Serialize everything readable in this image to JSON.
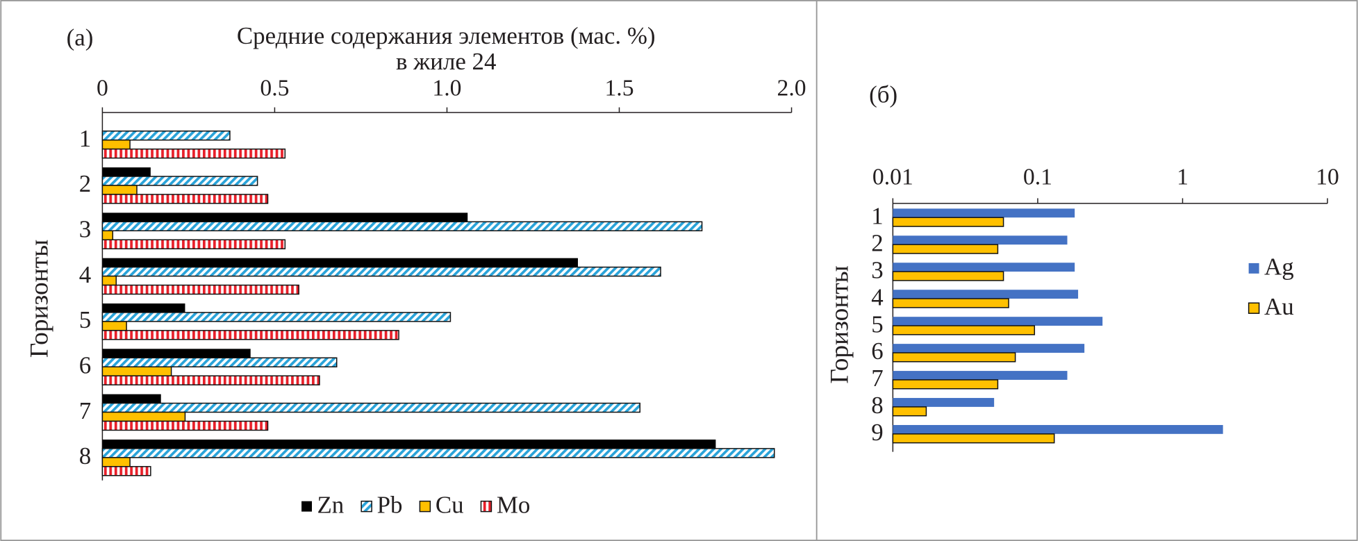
{
  "chart_data": [
    {
      "type": "bar",
      "horizontal": true,
      "panel_label": "(а)",
      "title": "Средние содержания элементов (мас. %)",
      "subtitle": "в жиле 24",
      "y_label": "Горизонты",
      "categories": [
        "1",
        "2",
        "3",
        "4",
        "5",
        "6",
        "7",
        "8"
      ],
      "series": [
        {
          "name": "Zn",
          "color": "#000000",
          "outline": false,
          "values": [
            null,
            0.14,
            1.06,
            1.38,
            0.24,
            0.43,
            0.17,
            1.78
          ]
        },
        {
          "name": "Pb",
          "color": "#29a3d9",
          "hatch": "diagonal",
          "outline": true,
          "values": [
            0.37,
            0.45,
            1.74,
            1.62,
            1.01,
            0.68,
            1.56,
            1.95
          ]
        },
        {
          "name": "Cu",
          "color": "#ffc000",
          "outline": true,
          "values": [
            0.08,
            0.1,
            0.03,
            0.04,
            0.07,
            0.2,
            0.24,
            0.08
          ]
        },
        {
          "name": "Mo",
          "color": "#e8202a",
          "hatch": "vertical",
          "outline": true,
          "values": [
            0.53,
            0.48,
            0.53,
            0.57,
            0.86,
            0.63,
            0.48,
            0.14
          ]
        }
      ],
      "xlim": [
        0,
        2
      ],
      "xticks": [
        0,
        0.5,
        {
          "value": 1,
          "label": "1.0"
        },
        1.5,
        {
          "value": 2,
          "label": "2.0"
        }
      ],
      "xscale": "linear",
      "legend": "bottom"
    },
    {
      "type": "bar",
      "horizontal": true,
      "panel_label": "(б)",
      "y_label": "Горизонты",
      "categories": [
        "1",
        "2",
        "3",
        "4",
        "5",
        "6",
        "7",
        "8",
        "9"
      ],
      "series": [
        {
          "name": "Ag",
          "color": "#4472c4",
          "outline": false,
          "values": [
            0.18,
            0.16,
            0.18,
            0.19,
            0.28,
            0.21,
            0.16,
            0.05,
            1.9
          ]
        },
        {
          "name": "Au",
          "color": "#ffc000",
          "outline": true,
          "values": [
            0.058,
            0.053,
            0.058,
            0.063,
            0.095,
            0.07,
            0.053,
            0.017,
            0.13
          ]
        }
      ],
      "xlim": [
        0.01,
        10
      ],
      "xticks": [
        0.01,
        0.1,
        1,
        10
      ],
      "xscale": "log",
      "legend": "right"
    }
  ]
}
